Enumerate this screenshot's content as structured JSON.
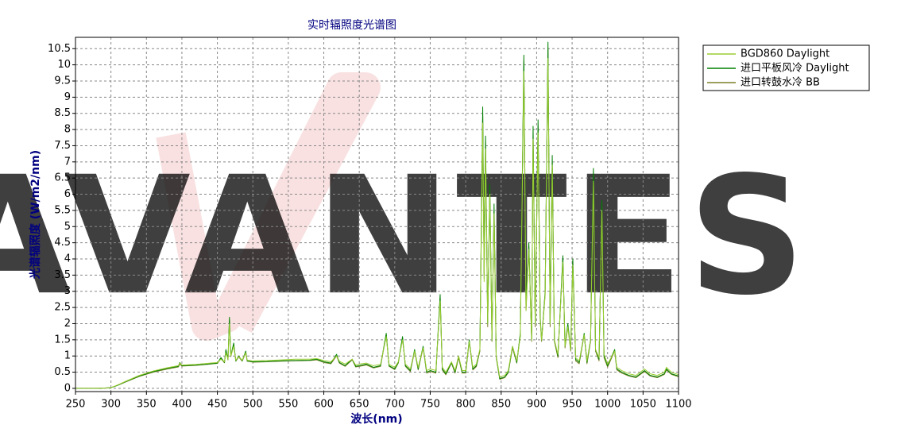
{
  "chart_data": {
    "type": "line",
    "title": "实时辐照度光谱图",
    "x_label": "波长(nm)",
    "y_label": "光谱辐照度 (W/m2/nm)",
    "watermark": "AVANTES",
    "xlim": [
      250,
      1100
    ],
    "xticks": [
      250,
      300,
      350,
      400,
      450,
      500,
      550,
      600,
      650,
      700,
      750,
      800,
      850,
      900,
      950,
      1000,
      1050,
      1100
    ],
    "ylim": [
      -0.1,
      10.85
    ],
    "yticks": [
      0,
      0.5,
      1,
      1.5,
      2,
      2.5,
      3,
      3.5,
      4,
      4.5,
      5,
      5.5,
      6,
      6.5,
      7,
      7.5,
      8,
      8.5,
      9,
      9.5,
      10,
      10.5
    ],
    "grid": true,
    "legend": "outside-top-right",
    "x": [
      250,
      280,
      300,
      310,
      320,
      340,
      360,
      380,
      395,
      397,
      400,
      420,
      440,
      450,
      455,
      460,
      462,
      465,
      467,
      469,
      473,
      476,
      480,
      485,
      490,
      492,
      500,
      520,
      540,
      560,
      580,
      590,
      600,
      610,
      618,
      622,
      630,
      640,
      645,
      650,
      660,
      670,
      680,
      688,
      692,
      700,
      705,
      711,
      715,
      722,
      728,
      733,
      740,
      745,
      750,
      758,
      764,
      767,
      772,
      780,
      785,
      790,
      795,
      800,
      805,
      810,
      815,
      820,
      824,
      826,
      828,
      831,
      834,
      837,
      840,
      843,
      848,
      855,
      860,
      866,
      872,
      877,
      882,
      885,
      889,
      893,
      895,
      898,
      902,
      905,
      907,
      912,
      916,
      919,
      922,
      925,
      930,
      937,
      940,
      944,
      948,
      951,
      955,
      960,
      967,
      971,
      976,
      980,
      983,
      988,
      992,
      995,
      1000,
      1010,
      1013,
      1020,
      1030,
      1040,
      1052,
      1060,
      1070,
      1080,
      1083,
      1090,
      1100
    ],
    "series": [
      {
        "name": "BGD860 Daylight",
        "color": "#9acd32",
        "values": [
          0,
          0,
          0.02,
          0.11,
          0.21,
          0.4,
          0.54,
          0.64,
          0.7,
          0.78,
          0.72,
          0.74,
          0.78,
          0.8,
          0.9,
          0.82,
          1.1,
          0.9,
          2.0,
          1.0,
          1.3,
          0.87,
          0.98,
          0.87,
          1.1,
          0.87,
          0.85,
          0.86,
          0.88,
          0.9,
          0.9,
          0.92,
          0.86,
          0.82,
          1.0,
          0.84,
          0.75,
          0.9,
          0.72,
          0.75,
          0.78,
          0.7,
          0.74,
          1.6,
          0.74,
          0.65,
          0.82,
          1.5,
          0.75,
          0.6,
          1.15,
          0.65,
          1.25,
          0.55,
          0.6,
          0.55,
          2.7,
          0.65,
          0.5,
          0.82,
          0.55,
          1.0,
          0.55,
          0.55,
          1.45,
          0.65,
          0.75,
          1.2,
          8.2,
          3.3,
          7.4,
          2.0,
          6.0,
          1.5,
          5.4,
          1.0,
          0.35,
          0.4,
          0.55,
          1.3,
          0.85,
          1.6,
          9.8,
          2.4,
          4.3,
          1.5,
          7.7,
          2.0,
          7.9,
          2.1,
          1.5,
          2.9,
          10.2,
          2.0,
          6.9,
          1.5,
          1.05,
          3.9,
          1.3,
          1.9,
          1.2,
          3.8,
          0.95,
          0.85,
          1.65,
          0.85,
          1.5,
          6.4,
          1.2,
          0.95,
          5.5,
          1.05,
          0.75,
          1.15,
          0.65,
          0.55,
          0.45,
          0.4,
          0.6,
          0.45,
          0.4,
          0.5,
          0.65,
          0.5,
          0.42
        ]
      },
      {
        "name": "进口平板风冷 Daylight",
        "color": "#008000",
        "values": [
          0,
          0,
          0.02,
          0.1,
          0.2,
          0.38,
          0.52,
          0.62,
          0.68,
          0.8,
          0.7,
          0.72,
          0.76,
          0.78,
          0.95,
          0.8,
          1.2,
          0.9,
          2.2,
          1.0,
          1.4,
          0.85,
          1.0,
          0.85,
          1.15,
          0.85,
          0.82,
          0.83,
          0.85,
          0.86,
          0.87,
          0.9,
          0.82,
          0.78,
          1.05,
          0.8,
          0.7,
          0.9,
          0.68,
          0.7,
          0.75,
          0.65,
          0.7,
          1.7,
          0.7,
          0.6,
          0.8,
          1.6,
          0.7,
          0.55,
          1.2,
          0.6,
          1.3,
          0.5,
          0.55,
          0.5,
          2.9,
          0.6,
          0.45,
          0.8,
          0.5,
          1.0,
          0.5,
          0.5,
          1.5,
          0.6,
          0.7,
          1.2,
          8.7,
          3.5,
          7.8,
          2.0,
          6.3,
          1.5,
          5.7,
          1.0,
          0.3,
          0.35,
          0.5,
          1.3,
          0.8,
          1.7,
          10.3,
          2.5,
          4.5,
          1.5,
          8.1,
          2.0,
          8.3,
          2.2,
          1.5,
          3.0,
          10.7,
          2.0,
          7.2,
          1.5,
          1.0,
          4.1,
          1.3,
          2.0,
          1.2,
          4.0,
          0.9,
          0.8,
          1.7,
          0.8,
          1.5,
          6.8,
          1.2,
          0.9,
          5.8,
          1.0,
          0.7,
          1.2,
          0.6,
          0.5,
          0.4,
          0.35,
          0.55,
          0.4,
          0.35,
          0.45,
          0.6,
          0.45,
          0.38
        ]
      },
      {
        "name": "进口转鼓水冷 BB",
        "color": "#7f7f2a",
        "values": [
          0,
          0,
          0.02,
          0.1,
          0.19,
          0.37,
          0.5,
          0.6,
          0.66,
          0.75,
          0.69,
          0.71,
          0.75,
          0.77,
          0.92,
          0.79,
          1.15,
          0.88,
          2.1,
          0.98,
          1.35,
          0.84,
          0.97,
          0.84,
          1.1,
          0.84,
          0.81,
          0.82,
          0.84,
          0.85,
          0.86,
          0.88,
          0.8,
          0.76,
          1.0,
          0.78,
          0.68,
          0.88,
          0.66,
          0.68,
          0.72,
          0.63,
          0.68,
          1.65,
          0.68,
          0.58,
          0.78,
          1.55,
          0.68,
          0.52,
          1.15,
          0.57,
          1.25,
          0.47,
          0.52,
          0.47,
          2.8,
          0.57,
          0.42,
          0.78,
          0.47,
          0.95,
          0.47,
          0.47,
          1.45,
          0.57,
          0.67,
          1.15,
          8.5,
          3.4,
          7.6,
          1.9,
          6.1,
          1.45,
          5.5,
          0.95,
          0.28,
          0.33,
          0.48,
          1.25,
          0.78,
          1.65,
          10.1,
          2.4,
          4.4,
          1.45,
          7.9,
          1.9,
          8.1,
          2.1,
          1.45,
          2.9,
          10.5,
          1.9,
          7.0,
          1.45,
          0.95,
          4.0,
          1.25,
          1.9,
          1.15,
          3.9,
          0.85,
          0.76,
          1.65,
          0.76,
          1.45,
          6.6,
          1.15,
          0.85,
          5.6,
          0.95,
          0.66,
          1.15,
          0.57,
          0.47,
          0.38,
          0.33,
          0.52,
          0.38,
          0.33,
          0.43,
          0.57,
          0.43,
          0.36
        ]
      }
    ]
  }
}
